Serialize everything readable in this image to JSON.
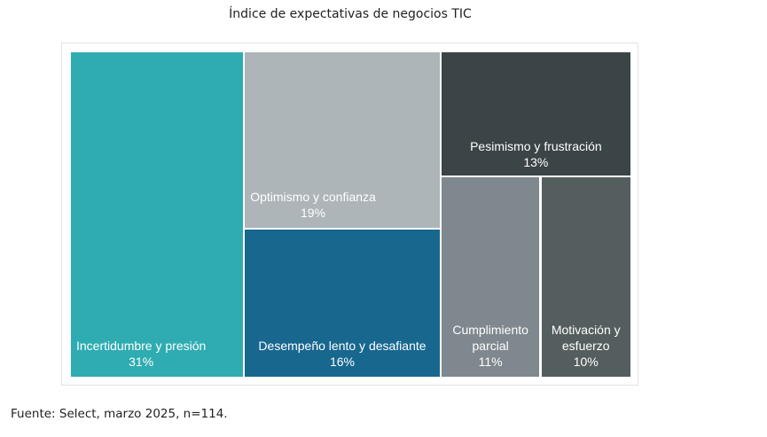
{
  "title": "Índice de expectativas de negocios TIC",
  "source": "Fuente: Select, marzo 2025, n=114.",
  "chart_data": {
    "type": "treemap",
    "items": [
      {
        "name": "Incertidumbre y presión",
        "value": 31,
        "label": "31%",
        "color": "#2eacb2"
      },
      {
        "name": "Optimismo y confianza",
        "value": 19,
        "label": "19%",
        "color": "#adb5b9"
      },
      {
        "name": "Desempeño lento y desafiante",
        "value": 16,
        "label": "16%",
        "color": "#17678f"
      },
      {
        "name": "Pesimismo y frustración",
        "value": 13,
        "label": "13%",
        "color": "#3b4446"
      },
      {
        "name": "Cumplimiento parcial",
        "value": 11,
        "label": "11%",
        "color": "#7f888e"
      },
      {
        "name": "Motivación y esfuerzo",
        "value": 10,
        "label": "10%",
        "color": "#545e5f"
      }
    ]
  }
}
